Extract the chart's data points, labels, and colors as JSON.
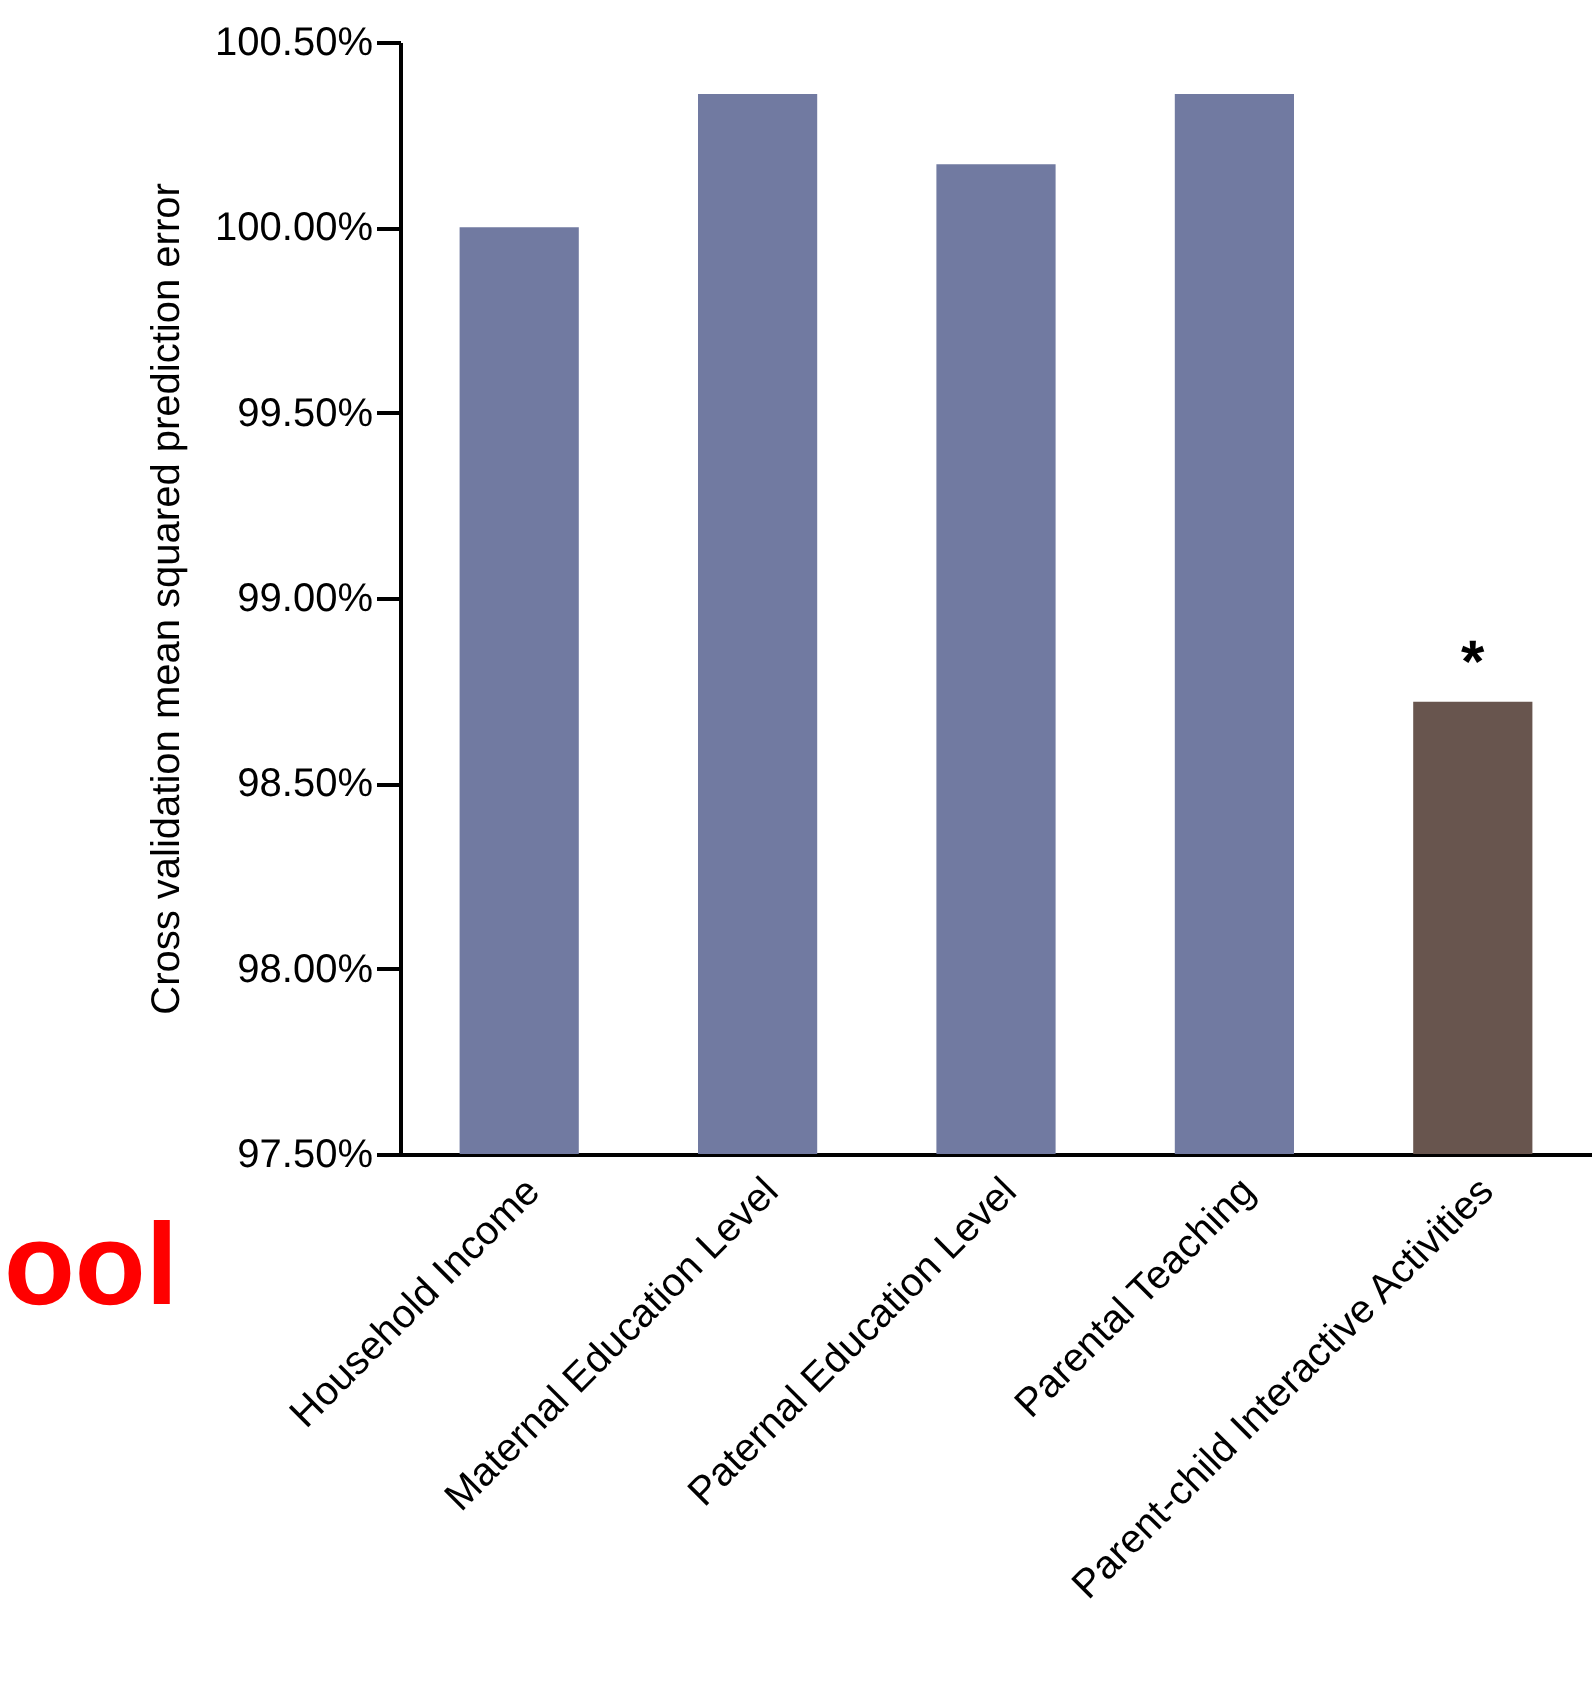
{
  "chart_data": {
    "type": "bar",
    "ylabel": "Cross validation mean squared prediction error",
    "categories": [
      "Household Income",
      "Maternal Education Level",
      "Paternal Education Level",
      "Parental Teaching",
      "Parent-child Interactive Activities"
    ],
    "values": [
      100.0,
      100.36,
      100.17,
      100.36,
      98.72
    ],
    "colors": [
      "#717aa1",
      "#717aa1",
      "#717aa1",
      "#717aa1",
      "#68554e"
    ],
    "ylim": [
      97.5,
      100.5
    ],
    "yticks": [
      {
        "value": 97.5,
        "label": "97.50%"
      },
      {
        "value": 98.0,
        "label": "98.00%"
      },
      {
        "value": 98.5,
        "label": "98.50%"
      },
      {
        "value": 99.0,
        "label": "99.00%"
      },
      {
        "value": 99.5,
        "label": "99.50%"
      },
      {
        "value": 100.0,
        "label": "100.00%"
      },
      {
        "value": 100.5,
        "label": "100.50%"
      }
    ],
    "grid": false,
    "annotations": [
      {
        "text": "*",
        "x": "Parent-child Interactive Activities",
        "y": 98.72
      },
      "ool"
    ]
  }
}
